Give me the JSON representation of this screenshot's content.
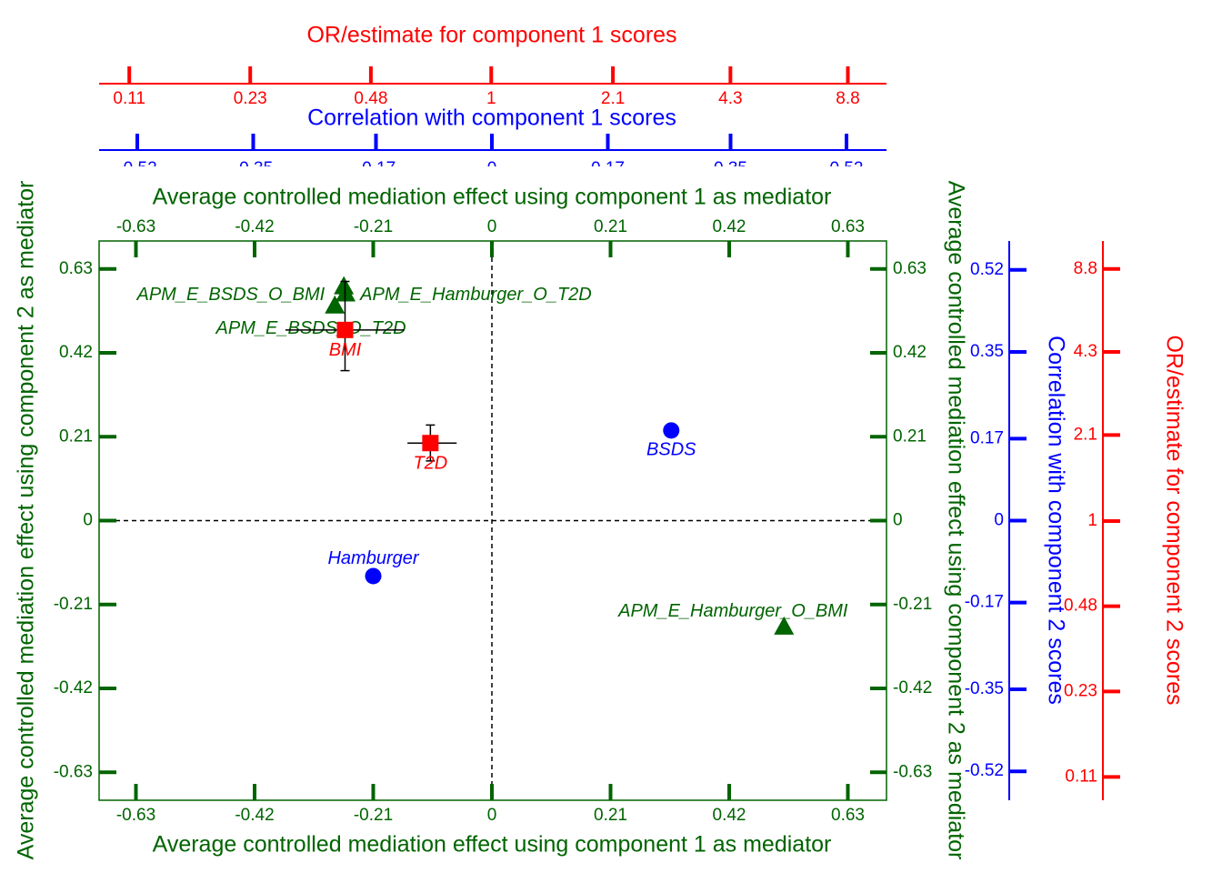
{
  "chart_data": {
    "type": "scatter",
    "x_title": "Average controlled mediation effect using component 1 as mediator",
    "y_title": "Average controlled mediation effect using component 2 as mediator",
    "xlim": [
      -0.7,
      0.7
    ],
    "ylim": [
      -0.7,
      0.7
    ],
    "xticks": [
      -0.63,
      -0.42,
      -0.21,
      0,
      0.21,
      0.42,
      0.63
    ],
    "yticks": [
      -0.63,
      -0.42,
      -0.21,
      0,
      0.21,
      0.42,
      0.63
    ],
    "main_color": "#006400",
    "corr_x_title": "Correlation with component 1 scores",
    "corr_y_title": "Correlation with component 2 scores",
    "corr_lim": [
      -0.58,
      0.58
    ],
    "corr_ticks": [
      -0.52,
      -0.35,
      -0.17,
      0,
      0.17,
      0.35,
      0.52
    ],
    "corr_color": "#0000ff",
    "or_x_title": "OR/estimate for component 1 scores",
    "or_y_title": "OR/estimate for component 2 scores",
    "or_lim": [
      0.09,
      11.2
    ],
    "or_ticks": [
      0.11,
      0.23,
      0.48,
      1,
      2.1,
      4.3,
      8.8
    ],
    "or_log": true,
    "or_color": "#ff0000",
    "zero_lines": true,
    "series": [
      {
        "axis": "main",
        "marker": "triangle",
        "color": "#006400",
        "labels": [
          "APM_E_Hamburger_O_T2D",
          "APM_E_BSDS_O_BMI",
          "APM_E_BSDS_O_T2D",
          "APM_E_Hamburger_O_BMI"
        ],
        "x": [
          -0.262,
          -0.278,
          -0.259,
          0.517
        ],
        "y": [
          0.587,
          0.539,
          0.569,
          -0.265
        ]
      },
      {
        "axis": "corr",
        "marker": "circle",
        "color": "#0000ff",
        "labels": [
          "BSDS",
          "Hamburger"
        ],
        "x": [
          0.263,
          -0.174
        ],
        "y": [
          0.187,
          -0.115
        ]
      },
      {
        "axis": "or",
        "marker": "square",
        "color": "#ff0000",
        "labels": [
          "BMI",
          "T2D"
        ],
        "x": [
          0.41,
          0.69
        ],
        "y": [
          5.2,
          1.96
        ],
        "x_lower": [
          0.285,
          0.6
        ],
        "x_upper": [
          0.588,
          0.81
        ],
        "y_lower": [
          3.66,
          1.68
        ],
        "y_upper": [
          7.9,
          2.29
        ]
      }
    ]
  }
}
